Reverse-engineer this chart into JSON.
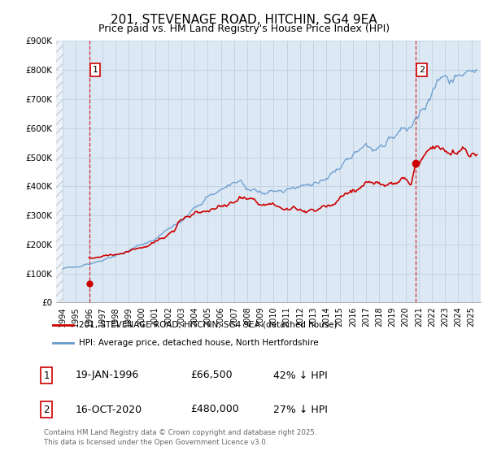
{
  "title": "201, STEVENAGE ROAD, HITCHIN, SG4 9EA",
  "subtitle": "Price paid vs. HM Land Registry's House Price Index (HPI)",
  "ylim": [
    0,
    900000
  ],
  "yticks": [
    0,
    100000,
    200000,
    300000,
    400000,
    500000,
    600000,
    700000,
    800000,
    900000
  ],
  "ytick_labels": [
    "£0",
    "£100K",
    "£200K",
    "£300K",
    "£400K",
    "£500K",
    "£600K",
    "£700K",
    "£800K",
    "£900K"
  ],
  "xlim_start": 1993.5,
  "xlim_end": 2025.7,
  "price_color": "#cc0000",
  "hpi_color": "#6699cc",
  "plot_bg_color": "#dce9f5",
  "sale1_date": 1996.05,
  "sale1_price": 66500,
  "sale1_label": "1",
  "sale2_date": 2020.79,
  "sale2_price": 480000,
  "sale2_label": "2",
  "legend_price_label": "201, STEVENAGE ROAD, HITCHIN, SG4 9EA (detached house)",
  "legend_hpi_label": "HPI: Average price, detached house, North Hertfordshire",
  "annotation1_date": "19-JAN-1996",
  "annotation1_price": "£66,500",
  "annotation1_hpi": "42% ↓ HPI",
  "annotation2_date": "16-OCT-2020",
  "annotation2_price": "£480,000",
  "annotation2_hpi": "27% ↓ HPI",
  "footer": "Contains HM Land Registry data © Crown copyright and database right 2025.\nThis data is licensed under the Open Government Licence v3.0.",
  "background_color": "#ffffff",
  "grid_color": "#c0cfe0",
  "title_fontsize": 11,
  "subtitle_fontsize": 9,
  "tick_fontsize": 7.5
}
